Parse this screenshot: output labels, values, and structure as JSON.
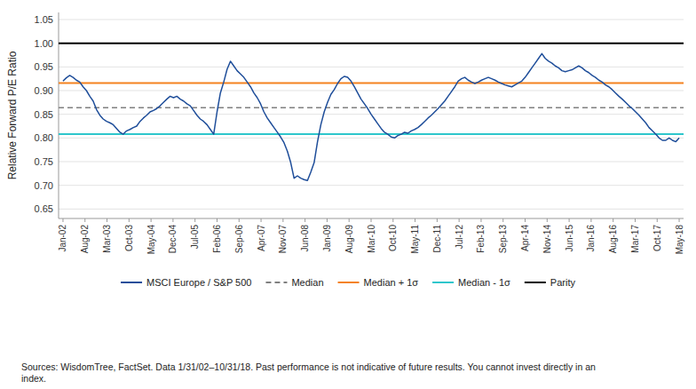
{
  "chart_data": {
    "type": "line",
    "ylabel": "Relative Forward P/E Ratio",
    "ylim": [
      0.63,
      1.065
    ],
    "yticks": [
      0.65,
      {
        "value": 0.7,
        "label": "0.70"
      },
      0.75,
      {
        "value": 0.8,
        "label": "0.80"
      },
      0.85,
      {
        "value": 0.9,
        "label": "0.90"
      },
      0.95,
      {
        "value": 1.0,
        "label": "1.00"
      },
      1.05
    ],
    "xlim": [
      -0.2,
      28.2
    ],
    "xticks": [
      {
        "value": 0,
        "label": "Jan-02"
      },
      {
        "value": 1,
        "label": "Aug-02"
      },
      {
        "value": 2,
        "label": "Mar-03"
      },
      {
        "value": 3,
        "label": "Oct-03"
      },
      {
        "value": 4,
        "label": "May-04"
      },
      {
        "value": 5,
        "label": "Dec-04"
      },
      {
        "value": 6,
        "label": "Jul-05"
      },
      {
        "value": 7,
        "label": "Feb-06"
      },
      {
        "value": 8,
        "label": "Sep-06"
      },
      {
        "value": 9,
        "label": "Apr-07"
      },
      {
        "value": 10,
        "label": "Nov-07"
      },
      {
        "value": 11,
        "label": "Jun-08"
      },
      {
        "value": 12,
        "label": "Jan-09"
      },
      {
        "value": 13,
        "label": "Aug-09"
      },
      {
        "value": 14,
        "label": "Mar-10"
      },
      {
        "value": 15,
        "label": "Oct-10"
      },
      {
        "value": 16,
        "label": "May-11"
      },
      {
        "value": 17,
        "label": "Dec-11"
      },
      {
        "value": 18,
        "label": "Jul-12"
      },
      {
        "value": 19,
        "label": "Feb-13"
      },
      {
        "value": 20,
        "label": "Sep-13"
      },
      {
        "value": 21,
        "label": "Apr-14"
      },
      {
        "value": 22,
        "label": "Nov-14"
      },
      {
        "value": 23,
        "label": "Jun-15"
      },
      {
        "value": 24,
        "label": "Jan-16"
      },
      {
        "value": 25,
        "label": "Aug-16"
      },
      {
        "value": 26,
        "label": "Mar-17"
      },
      {
        "value": 27,
        "label": "Oct-17"
      },
      {
        "value": 28,
        "label": "May-18"
      }
    ],
    "grid": true,
    "legend": "bottom",
    "annotations": [
      "Sources: WisdomTree, FactSet. Data 1/31/02–10/31/18. Past performance is not indicative of future results. You cannot invest directly in an\nindex."
    ],
    "series": [
      {
        "name": "MSCI Europe / S&P 500",
        "type": "line",
        "color": "#1F4E9A",
        "line_style": "solid",
        "values": [
          0.92,
          0.927,
          0.932,
          0.928,
          0.922,
          0.918,
          0.908,
          0.9,
          0.888,
          0.878,
          0.86,
          0.848,
          0.84,
          0.835,
          0.832,
          0.828,
          0.82,
          0.812,
          0.808,
          0.815,
          0.818,
          0.822,
          0.825,
          0.835,
          0.842,
          0.848,
          0.855,
          0.858,
          0.862,
          0.868,
          0.875,
          0.882,
          0.888,
          0.885,
          0.888,
          0.882,
          0.878,
          0.872,
          0.868,
          0.858,
          0.848,
          0.84,
          0.835,
          0.828,
          0.818,
          0.808,
          0.855,
          0.895,
          0.918,
          0.945,
          0.962,
          0.952,
          0.942,
          0.935,
          0.928,
          0.918,
          0.908,
          0.895,
          0.885,
          0.872,
          0.855,
          0.842,
          0.832,
          0.822,
          0.812,
          0.802,
          0.79,
          0.772,
          0.748,
          0.715,
          0.72,
          0.715,
          0.712,
          0.71,
          0.728,
          0.748,
          0.792,
          0.828,
          0.855,
          0.875,
          0.892,
          0.902,
          0.915,
          0.925,
          0.93,
          0.928,
          0.92,
          0.908,
          0.895,
          0.882,
          0.872,
          0.862,
          0.85,
          0.84,
          0.83,
          0.82,
          0.812,
          0.808,
          0.802,
          0.8,
          0.805,
          0.808,
          0.812,
          0.81,
          0.815,
          0.818,
          0.822,
          0.828,
          0.835,
          0.842,
          0.848,
          0.855,
          0.862,
          0.87,
          0.878,
          0.888,
          0.898,
          0.908,
          0.92,
          0.925,
          0.928,
          0.922,
          0.918,
          0.915,
          0.918,
          0.922,
          0.925,
          0.928,
          0.925,
          0.922,
          0.918,
          0.915,
          0.912,
          0.91,
          0.908,
          0.912,
          0.916,
          0.92,
          0.928,
          0.938,
          0.948,
          0.958,
          0.968,
          0.978,
          0.968,
          0.962,
          0.958,
          0.952,
          0.948,
          0.942,
          0.94,
          0.942,
          0.944,
          0.948,
          0.952,
          0.948,
          0.942,
          0.938,
          0.932,
          0.928,
          0.922,
          0.918,
          0.912,
          0.908,
          0.902,
          0.895,
          0.888,
          0.882,
          0.875,
          0.868,
          0.862,
          0.855,
          0.848,
          0.84,
          0.832,
          0.822,
          0.815,
          0.808,
          0.8,
          0.795,
          0.795,
          0.8,
          0.795,
          0.792,
          0.8
        ]
      },
      {
        "name": "Median",
        "type": "hline",
        "color": "#808080",
        "line_style": "dashed",
        "values": [
          0.864
        ]
      },
      {
        "name": "Median + 1σ",
        "type": "hline",
        "color": "#F4821F",
        "line_style": "solid",
        "values": [
          0.916
        ]
      },
      {
        "name": "Median - 1σ",
        "type": "hline",
        "color": "#2EC6CC",
        "line_style": "solid",
        "values": [
          0.808
        ]
      },
      {
        "name": "Parity",
        "type": "hline",
        "color": "#000000",
        "line_style": "solid",
        "values": [
          1.0
        ]
      }
    ]
  }
}
